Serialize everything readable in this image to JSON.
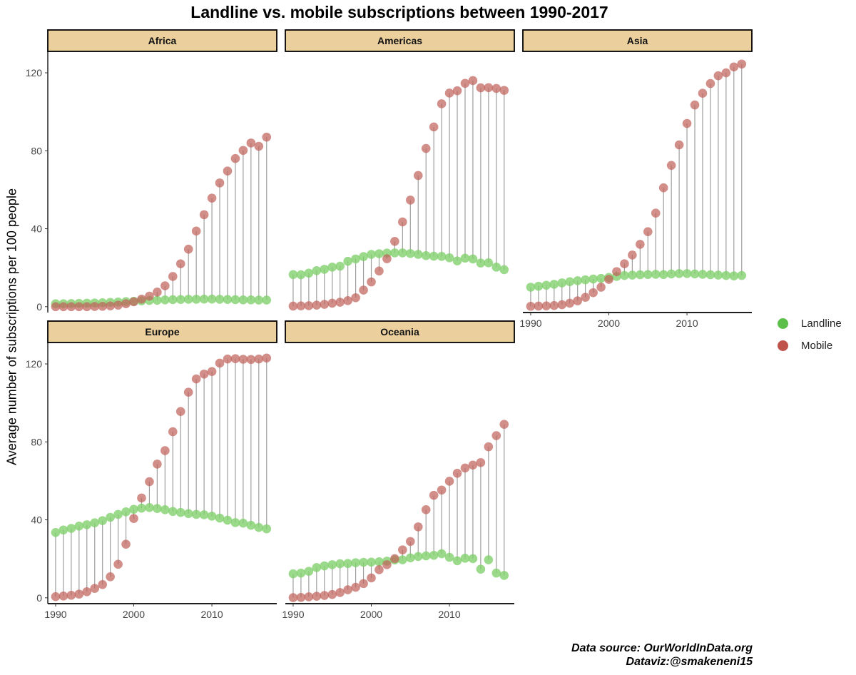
{
  "title": "Landline vs. mobile subscriptions between 1990-2017",
  "y_axis_label": "Average number of subscriptions per 100 people",
  "legend": [
    {
      "label": "Landline",
      "color": "#5bbf4a"
    },
    {
      "label": "Mobile",
      "color": "#c0524c"
    }
  ],
  "caption": {
    "line1": "Data source: OurWorldInData.org",
    "line2": "Dataviz:@smakeneni15"
  },
  "colors": {
    "landline": "#7fd06a",
    "mobile": "#c0625c",
    "segment": "#9e9e9e",
    "strip_fill": "#ebd09e"
  },
  "chart_data": {
    "type": "scatter",
    "style": "dumbbell",
    "x": [
      1990,
      1991,
      1992,
      1993,
      1994,
      1995,
      1996,
      1997,
      1998,
      1999,
      2000,
      2001,
      2002,
      2003,
      2004,
      2005,
      2006,
      2007,
      2008,
      2009,
      2010,
      2011,
      2012,
      2013,
      2014,
      2015,
      2016,
      2017
    ],
    "x_ticks": [
      1990,
      2000,
      2010
    ],
    "y_ticks": [
      0,
      40,
      80,
      120
    ],
    "xlim": [
      1989,
      2018.3
    ],
    "ylim": [
      -3,
      131
    ],
    "grid": false,
    "legend_position": "right",
    "panels": [
      {
        "name": "Africa",
        "landline": [
          1.5,
          1.5,
          1.6,
          1.7,
          1.8,
          1.9,
          2,
          2.2,
          2.4,
          2.6,
          2.8,
          3,
          3.2,
          3.3,
          3.5,
          3.6,
          3.7,
          3.8,
          3.8,
          3.9,
          3.9,
          3.8,
          3.7,
          3.6,
          3.5,
          3.5,
          3.4,
          3.4
        ],
        "mobile": [
          0,
          0,
          0,
          0,
          0,
          0.1,
          0.2,
          0.4,
          0.8,
          1.5,
          2.5,
          3.9,
          5.4,
          7.5,
          10.7,
          15.5,
          22,
          29.5,
          38.8,
          47.2,
          55.7,
          63.5,
          69.6,
          76,
          80.2,
          84,
          82.3,
          87
        ]
      },
      {
        "name": "Americas",
        "landline": [
          16.5,
          16.4,
          17.2,
          18.5,
          19.2,
          20.3,
          20.8,
          23.3,
          24.5,
          25.7,
          26.8,
          27.2,
          27.5,
          27.6,
          27.6,
          27.3,
          26.8,
          26.2,
          25.9,
          25.8,
          25.1,
          23.5,
          24.9,
          24.5,
          22.4,
          22.5,
          20.3,
          19
        ],
        "mobile": [
          0.3,
          0.4,
          0.5,
          0.8,
          1.2,
          1.8,
          2.3,
          3.1,
          4.6,
          8.5,
          12.7,
          18.3,
          24.6,
          33.5,
          43.5,
          54.7,
          67.3,
          81.2,
          92.2,
          104.1,
          109.6,
          110.8,
          114.6,
          116,
          112.3,
          112.4,
          112,
          111
        ]
      },
      {
        "name": "Asia",
        "landline": [
          10,
          10.5,
          11,
          11.5,
          12.2,
          12.8,
          13.3,
          13.8,
          14.2,
          14.5,
          15,
          15.5,
          16,
          16.2,
          16.4,
          16.5,
          16.6,
          16.5,
          16.8,
          17,
          17,
          16.8,
          16.6,
          16.4,
          16.2,
          16,
          15.8,
          16
        ],
        "mobile": [
          0.2,
          0.3,
          0.4,
          0.6,
          1,
          1.8,
          3,
          4.8,
          7.2,
          10,
          14,
          18,
          22,
          26.5,
          32,
          38.5,
          48,
          61,
          72.5,
          83,
          94,
          103.5,
          109.5,
          114.5,
          118.5,
          120,
          123,
          124.5
        ]
      },
      {
        "name": "Europe",
        "landline": [
          33.5,
          34.8,
          35.6,
          36.8,
          37.5,
          38.5,
          39.6,
          41.3,
          42.8,
          44.1,
          45.4,
          46,
          46.3,
          45.8,
          45.2,
          44.3,
          43.8,
          43.2,
          42.8,
          42.6,
          41.9,
          40.9,
          39.8,
          38.6,
          38.3,
          37.2,
          36.1,
          35.4
        ],
        "mobile": [
          0.6,
          0.9,
          1.3,
          1.9,
          3.1,
          4.8,
          6.8,
          10.8,
          17.2,
          27.5,
          40.7,
          51.2,
          59.6,
          68.6,
          75.5,
          85.2,
          95.6,
          105.5,
          112.3,
          114.8,
          116.1,
          120.4,
          122.5,
          122.7,
          122.4,
          122.3,
          122.5,
          123
        ]
      },
      {
        "name": "Oceania",
        "landline": [
          12.3,
          12.7,
          13.6,
          15.5,
          16.4,
          17,
          17.5,
          17.6,
          18,
          18.2,
          18.3,
          18.5,
          18.8,
          19.4,
          19.5,
          20.5,
          21.2,
          21.5,
          21.8,
          22.6,
          20.8,
          19,
          20.3,
          20.1,
          14.7,
          19.5,
          12.7,
          11.5
        ],
        "mobile": [
          0.1,
          0.2,
          0.5,
          0.8,
          1.2,
          1.7,
          2.7,
          4.1,
          5.4,
          7.3,
          10.2,
          14.4,
          17,
          20.1,
          24.6,
          28.9,
          36.4,
          45.2,
          52.6,
          55.3,
          59.8,
          63.9,
          66.6,
          68.1,
          69.4,
          77.5,
          83.2,
          89
        ]
      }
    ]
  }
}
